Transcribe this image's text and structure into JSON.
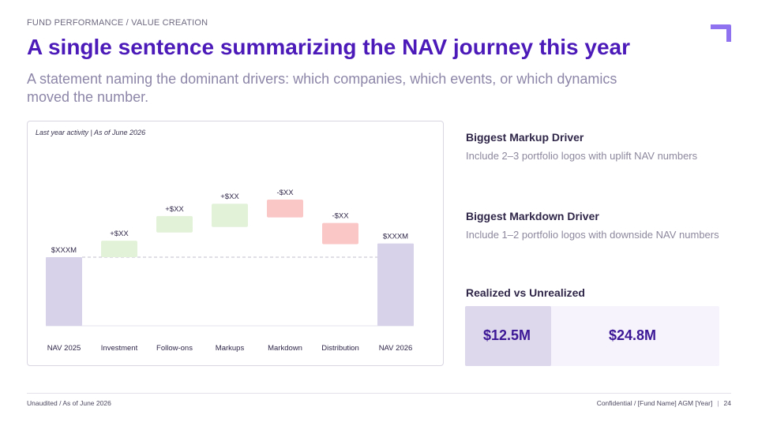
{
  "header": {
    "eyebrow": "FUND PERFORMANCE / VALUE CREATION",
    "title": "A single sentence summarizing the NAV journey this year",
    "subtitle": "A statement naming the dominant drivers: which companies, which events, or which dynamics moved the number."
  },
  "chart_note": "Last year activity | As of June 2026",
  "chart_data": {
    "type": "bar",
    "subtype": "waterfall",
    "categories": [
      "NAV 2025",
      "Investment",
      "Follow-ons",
      "Markups",
      "Markdown",
      "Distribution",
      "NAV 2026"
    ],
    "labels": [
      "$XXXM",
      "+$XX",
      "+$XX",
      "+$XX",
      "-$XX",
      "-$XX",
      "$XXXM"
    ],
    "steps": [
      {
        "kind": "total",
        "from": 0,
        "to": 100
      },
      {
        "kind": "increase",
        "from": 100,
        "to": 124
      },
      {
        "kind": "increase",
        "from": 136,
        "to": 160
      },
      {
        "kind": "increase",
        "from": 144,
        "to": 178
      },
      {
        "kind": "decrease",
        "from": 184,
        "to": 158
      },
      {
        "kind": "decrease",
        "from": 150,
        "to": 119
      },
      {
        "kind": "total",
        "from": 0,
        "to": 120
      }
    ],
    "ylim": [
      0,
      230
    ],
    "baseline_reference": 100,
    "grid": false,
    "colors": {
      "total": "#d7d1ea",
      "increase": "#e2f2d9",
      "decrease": "#fbc6c6"
    }
  },
  "sidebar": {
    "markup_title": "Biggest Markup Driver",
    "markup_text": "Include 2–3 portfolio logos with uplift NAV numbers",
    "markdown_title": "Biggest Markdown Driver",
    "markdown_text": "Include 1–2 portfolio logos with downside NAV numbers",
    "ru_title": "Realized vs Unrealized",
    "realized_value": "$12.5M",
    "unrealized_value": "$24.8M",
    "realized_share": 0.34
  },
  "footer": {
    "left": "Unaudited / As of June 2026",
    "right": "Confidential / [Fund Name] AGM [Year]",
    "separator": "|",
    "page": "24"
  },
  "colors": {
    "accent": "#4b1ab8",
    "logo": "#8f72f0"
  }
}
